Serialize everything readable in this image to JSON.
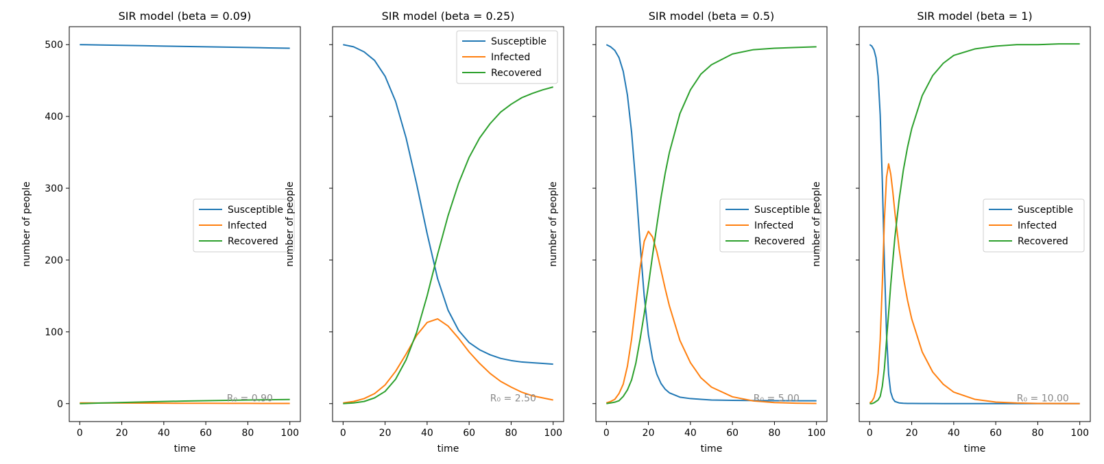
{
  "chart_data": [
    {
      "type": "line",
      "title": "SIR model (beta = 0.09)",
      "xlabel": "time",
      "ylabel": "number of people",
      "xlim": [
        -5,
        105
      ],
      "ylim": [
        -25,
        525
      ],
      "xticks": [
        "0",
        "20",
        "40",
        "60",
        "80",
        "100"
      ],
      "yticks": [
        "0",
        "100",
        "200",
        "300",
        "400",
        "500"
      ],
      "show_yticklabels": true,
      "legend_position": "center-right",
      "annotation": "R₀ = 0.90",
      "x": [
        0,
        10,
        20,
        30,
        40,
        50,
        60,
        70,
        80,
        90,
        100
      ],
      "series": [
        {
          "name": "Susceptible",
          "color": "#1f77b4",
          "values": [
            500,
            499.5,
            499,
            498.5,
            498,
            497.5,
            497,
            496.5,
            496,
            495.5,
            495
          ]
        },
        {
          "name": "Infected",
          "color": "#ff7f0e",
          "values": [
            1,
            0.9,
            0.8,
            0.7,
            0.6,
            0.5,
            0.45,
            0.4,
            0.35,
            0.3,
            0.3
          ]
        },
        {
          "name": "Recovered",
          "color": "#2ca02c",
          "values": [
            0,
            0.8,
            1.6,
            2.3,
            3,
            3.6,
            4.1,
            4.6,
            5,
            5.4,
            5.7
          ]
        }
      ]
    },
    {
      "type": "line",
      "title": "SIR model (beta = 0.25)",
      "xlabel": "time",
      "ylabel": "number of people",
      "xlim": [
        -5,
        105
      ],
      "ylim": [
        -25,
        525
      ],
      "xticks": [
        "0",
        "20",
        "40",
        "60",
        "80",
        "100"
      ],
      "yticks": [
        "0",
        "100",
        "200",
        "300",
        "400",
        "500"
      ],
      "show_yticklabels": false,
      "legend_position": "top-right",
      "annotation": "R₀ = 2.50",
      "x": [
        0,
        5,
        10,
        15,
        20,
        25,
        30,
        35,
        40,
        45,
        50,
        55,
        60,
        65,
        70,
        75,
        80,
        85,
        90,
        95,
        100
      ],
      "series": [
        {
          "name": "Susceptible",
          "color": "#1f77b4",
          "values": [
            500,
            497,
            490,
            478,
            456,
            421,
            370,
            306,
            237,
            174,
            130,
            102,
            85,
            75,
            68,
            63,
            60,
            58,
            57,
            56,
            55
          ]
        },
        {
          "name": "Infected",
          "color": "#ff7f0e",
          "values": [
            1,
            3,
            7,
            14,
            26,
            45,
            69,
            95,
            113,
            118,
            108,
            91,
            72,
            56,
            42,
            31,
            23,
            16,
            11,
            8,
            5
          ]
        },
        {
          "name": "Recovered",
          "color": "#2ca02c",
          "values": [
            0,
            1,
            3,
            8,
            17,
            34,
            61,
            99,
            150,
            208,
            262,
            307,
            343,
            370,
            390,
            406,
            417,
            426,
            432,
            437,
            441
          ]
        }
      ]
    },
    {
      "type": "line",
      "title": "SIR model (beta = 0.5)",
      "xlabel": "time",
      "ylabel": "number of people",
      "xlim": [
        -5,
        105
      ],
      "ylim": [
        -25,
        525
      ],
      "xticks": [
        "0",
        "20",
        "40",
        "60",
        "80",
        "100"
      ],
      "yticks": [
        "0",
        "100",
        "200",
        "300",
        "400",
        "500"
      ],
      "show_yticklabels": false,
      "legend_position": "center-right",
      "annotation": "R₀ = 5.00",
      "x": [
        0,
        2,
        4,
        6,
        8,
        10,
        12,
        14,
        16,
        18,
        20,
        22,
        24,
        26,
        28,
        30,
        35,
        40,
        45,
        50,
        60,
        70,
        80,
        90,
        100
      ],
      "series": [
        {
          "name": "Susceptible",
          "color": "#1f77b4",
          "values": [
            500,
            497,
            492,
            482,
            463,
            430,
            378,
            306,
            224,
            150,
            96,
            62,
            41,
            28,
            20,
            15,
            9,
            7,
            6,
            5,
            4.5,
            4.3,
            4.1,
            4,
            4
          ]
        },
        {
          "name": "Infected",
          "color": "#ff7f0e",
          "values": [
            1,
            3,
            6,
            14,
            27,
            52,
            90,
            139,
            188,
            226,
            240,
            232,
            212,
            186,
            160,
            136,
            88,
            57,
            36,
            23,
            9.5,
            3.7,
            1.5,
            0.6,
            0.2
          ]
        },
        {
          "name": "Recovered",
          "color": "#2ca02c",
          "values": [
            0,
            1,
            2,
            4,
            10,
            19,
            33,
            56,
            89,
            125,
            165,
            207,
            248,
            287,
            321,
            350,
            404,
            437,
            459,
            472,
            487,
            493,
            495,
            496,
            497
          ]
        }
      ]
    },
    {
      "type": "line",
      "title": "SIR model (beta = 1)",
      "xlabel": "time",
      "ylabel": "number of people",
      "xlim": [
        -5,
        105
      ],
      "ylim": [
        -25,
        525
      ],
      "xticks": [
        "0",
        "20",
        "40",
        "60",
        "80",
        "100"
      ],
      "yticks": [
        "0",
        "100",
        "200",
        "300",
        "400",
        "500"
      ],
      "show_yticklabels": false,
      "legend_position": "center-right",
      "annotation": "R₀ = 10.00",
      "x": [
        0,
        1,
        2,
        3,
        4,
        5,
        6,
        7,
        8,
        9,
        10,
        11,
        12,
        14,
        16,
        18,
        20,
        25,
        30,
        35,
        40,
        50,
        60,
        70,
        80,
        90,
        100
      ],
      "series": [
        {
          "name": "Susceptible",
          "color": "#1f77b4",
          "values": [
            500,
            498,
            493,
            482,
            456,
            402,
            310,
            196,
            98,
            41,
            16,
            7,
            3,
            1,
            0.5,
            0.3,
            0.2,
            0.1,
            0.1,
            0,
            0,
            0,
            0,
            0,
            0,
            0,
            0
          ]
        },
        {
          "name": "Infected",
          "color": "#ff7f0e",
          "values": [
            1,
            3,
            8,
            19,
            42,
            89,
            167,
            256,
            315,
            334,
            320,
            295,
            266,
            216,
            176,
            144,
            118,
            72,
            44,
            27,
            16,
            6,
            2.2,
            0.8,
            0.3,
            0.1,
            0
          ]
        },
        {
          "name": "Recovered",
          "color": "#2ca02c",
          "values": [
            0,
            0,
            1,
            3,
            5,
            10,
            24,
            49,
            88,
            126,
            165,
            199,
            232,
            284,
            325,
            357,
            383,
            429,
            457,
            474,
            485,
            494,
            498,
            500,
            500,
            501,
            501
          ]
        }
      ]
    }
  ]
}
